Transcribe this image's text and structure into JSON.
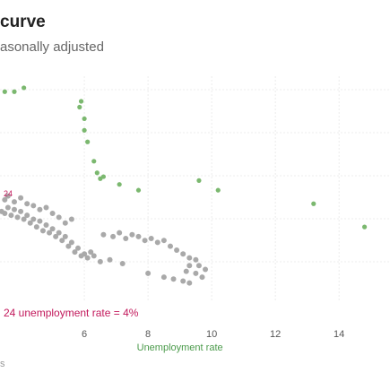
{
  "header": {
    "title": "curve",
    "subtitle": "asonally adjusted"
  },
  "footer": {
    "source": "s"
  },
  "chart_data": {
    "type": "scatter",
    "title": "curve",
    "subtitle": "asonally adjusted",
    "xlabel": "Unemployment rate",
    "ylabel": "",
    "xlim": [
      3.35,
      15.6
    ],
    "x_ticks": [
      6,
      8,
      10,
      12,
      14
    ],
    "grid": true,
    "annotations": [
      {
        "text": "24 unemployment rate = 4%",
        "color": "#c2185b"
      },
      {
        "text": "24",
        "color": "#c2185b"
      }
    ],
    "series": [
      {
        "color": "#7bb86f",
        "points": [
          {
            "x": 3.5,
            "y": 4.6
          },
          {
            "x": 3.8,
            "y": 4.6
          },
          {
            "x": 4.1,
            "y": 4.7
          },
          {
            "x": 5.9,
            "y": 4.35
          },
          {
            "x": 5.85,
            "y": 4.2
          },
          {
            "x": 6.0,
            "y": 3.9
          },
          {
            "x": 6.0,
            "y": 3.6
          },
          {
            "x": 6.1,
            "y": 3.3
          },
          {
            "x": 6.3,
            "y": 2.8
          },
          {
            "x": 6.4,
            "y": 2.5
          },
          {
            "x": 6.6,
            "y": 2.4
          },
          {
            "x": 7.1,
            "y": 2.2
          },
          {
            "x": 7.7,
            "y": 2.05
          },
          {
            "x": 9.6,
            "y": 2.3
          },
          {
            "x": 10.2,
            "y": 2.05
          },
          {
            "x": 13.2,
            "y": 1.7
          },
          {
            "x": 14.8,
            "y": 1.1
          },
          {
            "x": 6.5,
            "y": 2.35
          }
        ]
      },
      {
        "color": "#a9a9a9",
        "points": [
          {
            "x": 3.4,
            "y": 1.5
          },
          {
            "x": 3.5,
            "y": 1.45
          },
          {
            "x": 3.6,
            "y": 1.6
          },
          {
            "x": 3.7,
            "y": 1.4
          },
          {
            "x": 3.8,
            "y": 1.55
          },
          {
            "x": 3.9,
            "y": 1.35
          },
          {
            "x": 4.0,
            "y": 1.5
          },
          {
            "x": 4.1,
            "y": 1.3
          },
          {
            "x": 4.2,
            "y": 1.4
          },
          {
            "x": 4.3,
            "y": 1.2
          },
          {
            "x": 4.4,
            "y": 1.3
          },
          {
            "x": 4.5,
            "y": 1.1
          },
          {
            "x": 4.6,
            "y": 1.25
          },
          {
            "x": 4.7,
            "y": 1.0
          },
          {
            "x": 4.8,
            "y": 1.15
          },
          {
            "x": 4.9,
            "y": 0.95
          },
          {
            "x": 5.0,
            "y": 1.05
          },
          {
            "x": 5.1,
            "y": 0.85
          },
          {
            "x": 5.2,
            "y": 0.95
          },
          {
            "x": 5.3,
            "y": 0.75
          },
          {
            "x": 5.4,
            "y": 0.85
          },
          {
            "x": 5.5,
            "y": 0.6
          },
          {
            "x": 5.6,
            "y": 0.7
          },
          {
            "x": 5.7,
            "y": 0.45
          },
          {
            "x": 5.8,
            "y": 0.55
          },
          {
            "x": 5.9,
            "y": 0.35
          },
          {
            "x": 6.0,
            "y": 0.4
          },
          {
            "x": 6.1,
            "y": 0.3
          },
          {
            "x": 6.2,
            "y": 0.45
          },
          {
            "x": 6.3,
            "y": 0.35
          },
          {
            "x": 3.5,
            "y": 1.8
          },
          {
            "x": 3.6,
            "y": 1.9
          },
          {
            "x": 3.8,
            "y": 1.75
          },
          {
            "x": 4.0,
            "y": 1.85
          },
          {
            "x": 4.2,
            "y": 1.7
          },
          {
            "x": 4.4,
            "y": 1.65
          },
          {
            "x": 4.6,
            "y": 1.55
          },
          {
            "x": 4.8,
            "y": 1.6
          },
          {
            "x": 5.0,
            "y": 1.45
          },
          {
            "x": 5.2,
            "y": 1.35
          },
          {
            "x": 5.4,
            "y": 1.2
          },
          {
            "x": 5.6,
            "y": 1.3
          },
          {
            "x": 6.6,
            "y": 0.9
          },
          {
            "x": 6.9,
            "y": 0.85
          },
          {
            "x": 7.1,
            "y": 0.95
          },
          {
            "x": 7.3,
            "y": 0.8
          },
          {
            "x": 7.5,
            "y": 0.9
          },
          {
            "x": 7.7,
            "y": 0.85
          },
          {
            "x": 7.9,
            "y": 0.75
          },
          {
            "x": 8.1,
            "y": 0.8
          },
          {
            "x": 8.3,
            "y": 0.7
          },
          {
            "x": 8.5,
            "y": 0.75
          },
          {
            "x": 8.7,
            "y": 0.6
          },
          {
            "x": 8.9,
            "y": 0.5
          },
          {
            "x": 9.1,
            "y": 0.4
          },
          {
            "x": 9.3,
            "y": 0.3
          },
          {
            "x": 9.5,
            "y": 0.25
          },
          {
            "x": 9.6,
            "y": 0.1
          },
          {
            "x": 9.8,
            "y": 0.0
          },
          {
            "x": 9.3,
            "y": 0.1
          },
          {
            "x": 6.5,
            "y": 0.2
          },
          {
            "x": 6.8,
            "y": 0.25
          },
          {
            "x": 7.2,
            "y": 0.15
          },
          {
            "x": 8.0,
            "y": -0.1
          },
          {
            "x": 8.5,
            "y": -0.2
          },
          {
            "x": 8.8,
            "y": -0.25
          },
          {
            "x": 9.1,
            "y": -0.3
          },
          {
            "x": 9.3,
            "y": -0.35
          },
          {
            "x": 9.7,
            "y": -0.2
          },
          {
            "x": 9.2,
            "y": -0.05
          },
          {
            "x": 9.5,
            "y": -0.1
          }
        ]
      }
    ]
  }
}
